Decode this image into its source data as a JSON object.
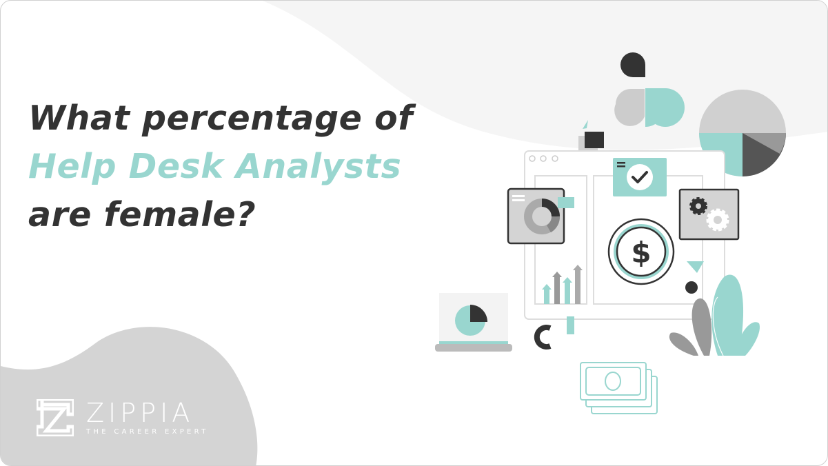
{
  "headline": {
    "line1": "What percentage of",
    "line2": "Help Desk Analysts",
    "line3": "are female?"
  },
  "logo": {
    "brand": "ZIPPIA",
    "tagline": "THE CAREER EXPERT"
  },
  "colors": {
    "text_dark": "#333333",
    "accent_teal": "#99d6cf",
    "blob_gray": "#d4d4d4",
    "blob_light": "#f5f5f5"
  },
  "illustration": {
    "currency_symbol": "$",
    "icons": [
      "dashboard-window-icon",
      "donut-chart-icon",
      "checkmark-icon",
      "gear-icon",
      "dollar-coin-icon",
      "bar-chart-arrows-icon",
      "laptop-pie-chart-icon",
      "banknote-stack-icon",
      "plant-icon",
      "pie-chart-icon"
    ]
  }
}
